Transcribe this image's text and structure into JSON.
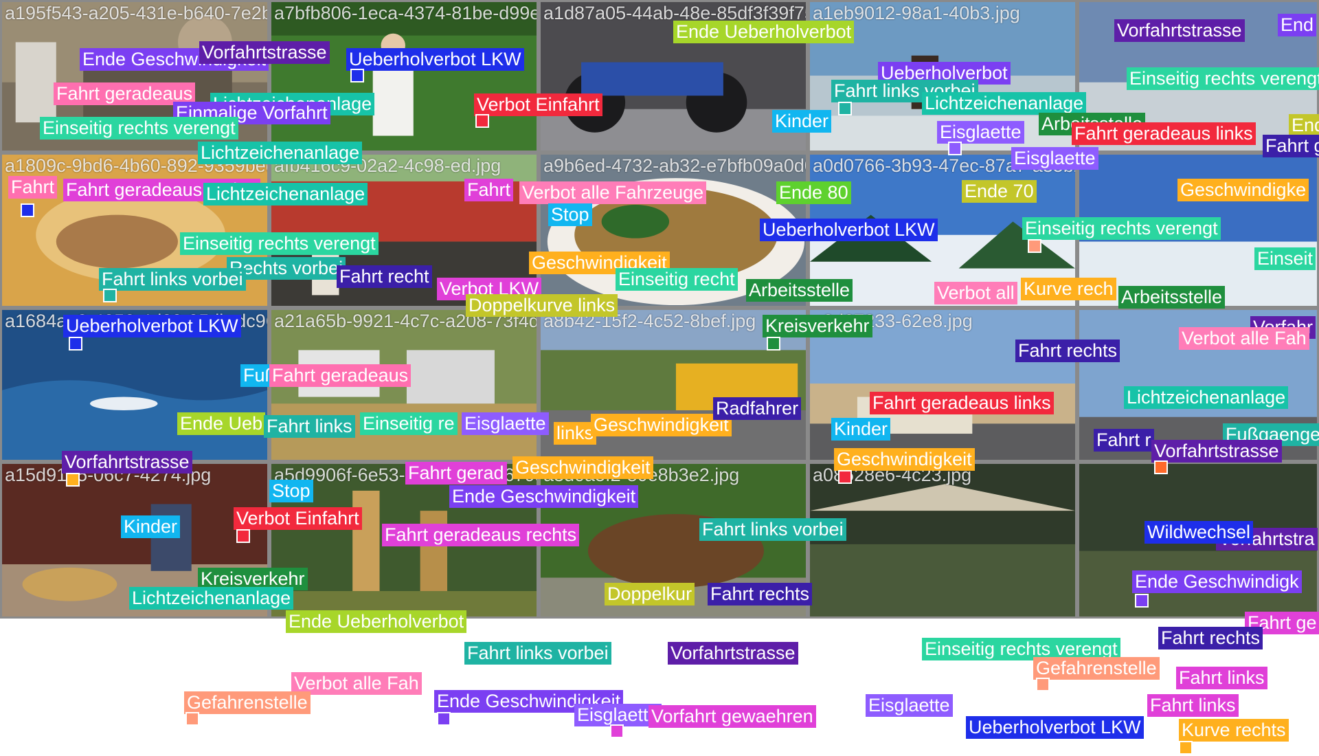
{
  "tile_ids": [
    "a195f543-a205-431e-b640-7e2b9cd82b4e.jpg",
    "a7bfb806-1eca-4374-81be-d99e664f1627.jpg",
    "a1d87a05-44ab-48e-85df3f39f7558e19.jpg",
    "a1eb9012-98a1-40b3.jpg",
    "a1809c-9bd6-4b60-892-9359bedf1428.jpg",
    "afb416c9-02a2-4c98-ed.jpg",
    "a9b6ed-4732-ab32-e7bfb09a0d0.jpg",
    "a0d0766-3b93-47ec-87a7-a35b2f.jpg",
    "a1684aa3-4852-4d39-95db-dc963b3744f8.jpg",
    "a21a65b-9921-4c7c-a208-73f4d53f90b.jpg",
    "a8b42-15f2-4c52-8bef.jpg",
    "a0d67233-62e8.jpg",
    "a15d9125-06c7-4274.jpg",
    "a5d9906f-6e53-4056-b2ca-f679a3f5a2e0.jpg",
    "a3d0a5f2-80e8b3e2.jpg",
    "a08528e6-4c23.jpg"
  ],
  "labels": {
    "ende_geschwindigkeit": "Ende Geschwindigkeit",
    "vorfahrtstrasse": "Vorfahrtstrasse",
    "fahrt_geradeaus": "Fahrt geradeaus",
    "lichtzeichenanlage": "Lichtzeichenanlage",
    "einmalige_vorfahrt": "Einmalige Vorfahrt",
    "einseitig_rechts_verengt": "Einseitig rechts verengt",
    "fahrt_geradeaus_rechts": "Fahrt geradeaus rechts",
    "ueberholverbot_lkw": "Ueberholverbot LKW",
    "verbot_einfahrt": "Verbot Einfahrt",
    "verbot_alle_fahrzeuge": "Verbot alle Fahrzeuge",
    "stop": "Stop",
    "ende_ueberholverbot": "Ende Ueberholverbot",
    "ueberholverbot": "Ueberholverbot",
    "fahrt_links_vorbei": "Fahrt links vorbei",
    "kinder": "Kinder",
    "eisglaette": "Eisglaette",
    "arbeitsstelle": "Arbeitsstelle",
    "fahrt_geradeaus_links": "Fahrt geradeaus links",
    "ende_80": "Ende 80",
    "ende_70": "Ende 70",
    "geschwindigkeit": "Geschwindigkeit",
    "fahrt_rechts": "Fahrt rechts",
    "verbot_lkw": "Verbot LKW",
    "doppelkurve_links": "Doppelkurve links",
    "kreisverkehr": "Kreisverkehr",
    "kurve_rechts": "Kurve rechts",
    "fussgaenger": "Fußgaenger",
    "fahrt_links": "Fahrt links",
    "radfahrer": "Radfahrer",
    "wildwechsel": "Wildwechsel",
    "gefahrenstelle": "Gefahrenstelle",
    "vorfahrt_gewaehren": "Vorfahrt gewaehren",
    "fahrt": "Fahrt",
    "ende": "Ende",
    "einseit": "Einseit",
    "fahrt_rechts_trunc": "Fahrt r",
    "fahrt_g": "Fahrt g",
    "fahrt_ge": "Fahrt ge",
    "fahrt_gerad": "Fahrt gerad",
    "rechts_vorbei": "Rechts vorbei",
    "ende_ueb": "Ende Ueb",
    "einseitig_re": "Einseitig re",
    "fahrt_recht": "Fahrt recht",
    "ful": "Fuß",
    "links": "links",
    "doppelkur": "Doppelkur",
    "verbot_all": "Verbot all",
    "kurve_rech": "Kurve rech",
    "einseitig_recht": "Einseitig recht",
    "ende_geschwindigk": "Ende Geschwindigk",
    "vorfahr": "Vorfahr",
    "verbot_alle_fah": "Verbot alle Fah",
    "fahrt_gerad_partial": "Fahrt gerad",
    "gefahrenstelle_partial": "Gefahrenstelle",
    "end": "End",
    "ende_70_partial": "Ende 70",
    "rechts_vorbei_partial": "Rechts vorbei",
    "vorfahrtstra": "Vorfahrtstra",
    "ende_short": "End",
    "geschwindigke": "Geschwindigke"
  },
  "tag_colors": {
    "violet": "#7B3FF2",
    "purple": "#5E1EA8",
    "pink": "#FF6FB0",
    "teal": "#17C3A8",
    "green": "#1EB86B",
    "sea": "#2BD6A0",
    "blue": "#1E2EEA",
    "red": "#F2293D",
    "light_pink": "#FF7DB8",
    "yellow_green": "#A7D62A",
    "sky": "#11B6F0",
    "olive": "#C3C62A",
    "orange": "#FFB01E",
    "dark_green": "#1F8F3E",
    "lime": "#5ED12E",
    "cyan_teal": "#1FB3A3",
    "navy": "#2A2EC8",
    "salmon": "#FF9A7A",
    "magenta": "#E040D8",
    "indigo": "#3B1FA8",
    "lavender": "#8E5CFF"
  }
}
